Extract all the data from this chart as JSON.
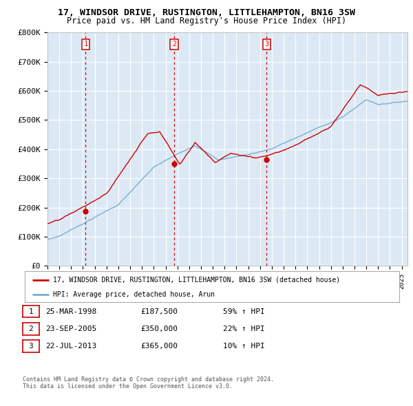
{
  "title_line1": "17, WINDSOR DRIVE, RUSTINGTON, LITTLEHAMPTON, BN16 3SW",
  "title_line2": "Price paid vs. HM Land Registry's House Price Index (HPI)",
  "sale_dates_decimal": [
    1998.229,
    2005.726,
    2013.554
  ],
  "sale_prices": [
    187500,
    350000,
    365000
  ],
  "sale_labels": [
    "1",
    "2",
    "3"
  ],
  "sale_pct_hpi": [
    "59%",
    "22%",
    "10%"
  ],
  "sale_date_labels": [
    "25-MAR-1998",
    "23-SEP-2005",
    "22-JUL-2013"
  ],
  "sale_price_labels": [
    "£187,500",
    "£350,000",
    "£365,000"
  ],
  "legend_label_red": "17, WINDSOR DRIVE, RUSTINGTON, LITTLEHAMPTON, BN16 3SW (detached house)",
  "legend_label_blue": "HPI: Average price, detached house, Arun",
  "footer_line1": "Contains HM Land Registry data © Crown copyright and database right 2024.",
  "footer_line2": "This data is licensed under the Open Government Licence v3.0.",
  "red_color": "#cc0000",
  "blue_color": "#7aadd4",
  "bg_color": "#dce9f5",
  "grid_color": "#ffffff",
  "ylim": [
    0,
    800000
  ],
  "yticks": [
    0,
    100000,
    200000,
    300000,
    400000,
    500000,
    600000,
    700000,
    800000
  ],
  "ytick_labels": [
    "£0",
    "£100K",
    "£200K",
    "£300K",
    "£400K",
    "£500K",
    "£600K",
    "£700K",
    "£800K"
  ],
  "xmin": 1995,
  "xmax": 2025.5
}
